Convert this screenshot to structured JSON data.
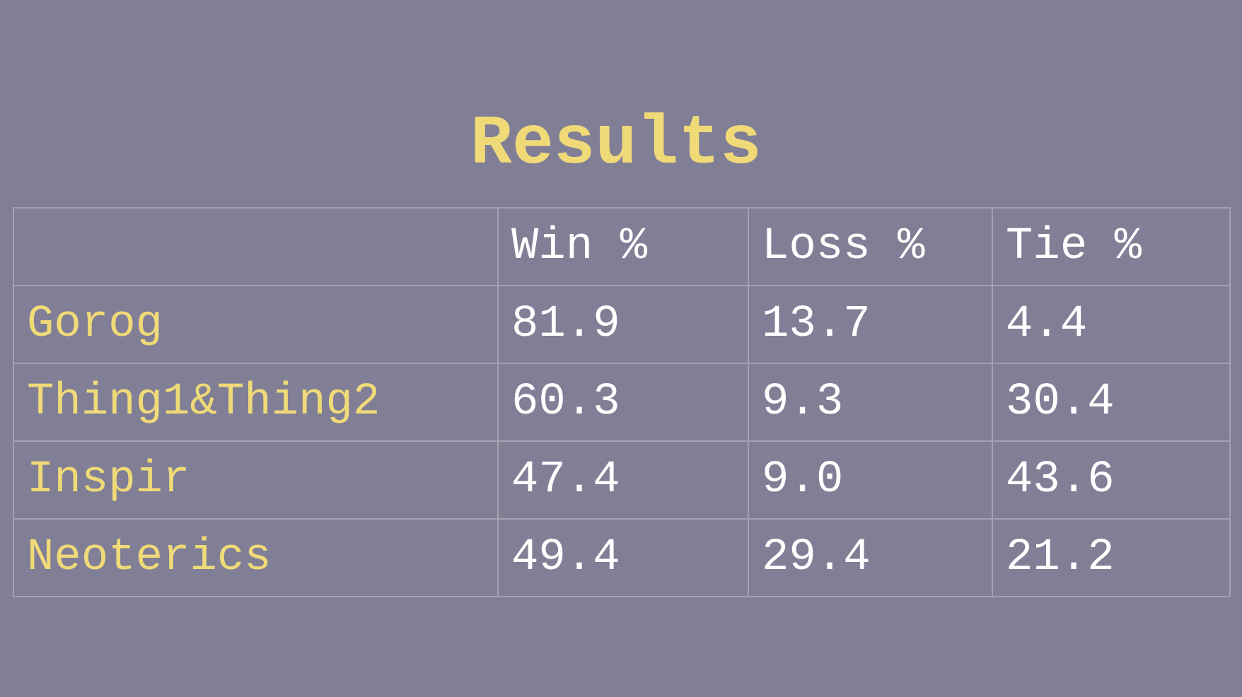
{
  "title": "Results",
  "headers": [
    "",
    "Win %",
    "Loss %",
    "Tie %"
  ],
  "rows": [
    {
      "name": "Gorog",
      "win": "81.9",
      "loss": "13.7",
      "tie": "4.4"
    },
    {
      "name": "Thing1&Thing2",
      "win": "60.3",
      "loss": "9.3",
      "tie": "30.4"
    },
    {
      "name": "Inspir",
      "win": "47.4",
      "loss": "9.0",
      "tie": "43.6"
    },
    {
      "name": "Neoterics",
      "win": "49.4",
      "loss": "29.4",
      "tie": "21.2"
    }
  ],
  "colors": {
    "background": "#807f96",
    "accent": "#f0da78",
    "text": "#ffffff"
  }
}
